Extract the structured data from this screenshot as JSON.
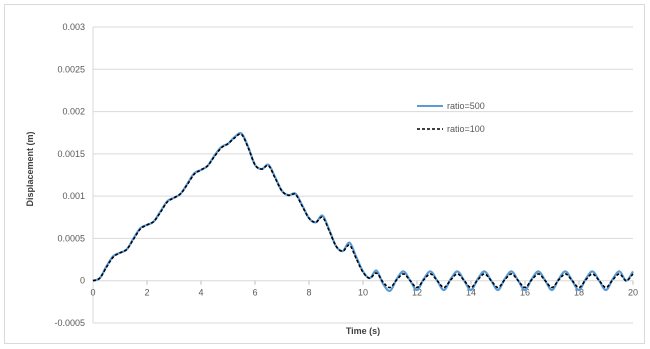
{
  "chart_data": {
    "type": "line",
    "title": "",
    "xlabel": "Time (s)",
    "ylabel": "Displacement (m)",
    "xlim": [
      0,
      20
    ],
    "ylim": [
      -0.0005,
      0.003
    ],
    "x_ticks": [
      "0",
      "2",
      "4",
      "6",
      "8",
      "10",
      "12",
      "14",
      "16",
      "18",
      "20"
    ],
    "y_ticks": [
      "0.003",
      "0.0025",
      "0.002",
      "0.0015",
      "0.001",
      "0.0005",
      "0",
      "-0.0005"
    ],
    "grid": true,
    "legend_position": "right",
    "series": [
      {
        "name": "ratio=500",
        "color": "#5b9bd5",
        "style": "solid",
        "x": [
          0,
          0.25,
          0.5,
          0.75,
          1,
          1.25,
          1.5,
          1.75,
          2,
          2.25,
          2.5,
          2.75,
          3,
          3.25,
          3.5,
          3.75,
          4,
          4.25,
          4.5,
          4.75,
          5,
          5.25,
          5.5,
          5.75,
          6,
          6.25,
          6.5,
          6.75,
          7,
          7.25,
          7.5,
          7.75,
          8,
          8.25,
          8.5,
          8.75,
          9,
          9.25,
          9.5,
          9.75,
          10,
          10.25,
          10.5,
          10.75,
          11,
          11.25,
          11.5,
          11.75,
          12,
          12.25,
          12.5,
          12.75,
          13,
          13.25,
          13.5,
          13.75,
          14,
          14.25,
          14.5,
          14.75,
          15,
          15.25,
          15.5,
          15.75,
          16,
          16.25,
          16.5,
          16.75,
          17,
          17.25,
          17.5,
          17.75,
          18,
          18.25,
          18.5,
          18.75,
          19,
          19.25,
          19.5,
          19.75,
          20
        ],
        "y": [
          0,
          3e-05,
          0.00017,
          0.00029,
          0.00033,
          0.00037,
          0.0005,
          0.00062,
          0.00066,
          0.0007,
          0.00082,
          0.00094,
          0.00098,
          0.00103,
          0.00115,
          0.00127,
          0.00131,
          0.00136,
          0.00148,
          0.00158,
          0.00162,
          0.0017,
          0.00174,
          0.00158,
          0.00137,
          0.00132,
          0.00137,
          0.00122,
          0.00106,
          0.00101,
          0.00103,
          0.00089,
          0.00074,
          0.00069,
          0.00077,
          0.0006,
          0.00041,
          0.00035,
          0.00045,
          0.00028,
          0.00011,
          3e-05,
          0.00012,
          -4e-05,
          -0.00012,
          2e-05,
          0.00011,
          0.0,
          -0.00011,
          2e-05,
          0.00011,
          0.0,
          -0.00011,
          2e-05,
          0.00011,
          0.0,
          -0.00011,
          2e-05,
          0.00011,
          0.0,
          -0.00011,
          2e-05,
          0.00011,
          0.0,
          -0.00011,
          2e-05,
          0.00011,
          0.0,
          -0.00011,
          2e-05,
          0.00011,
          0.0,
          -0.00011,
          2e-05,
          0.00011,
          0.0,
          -0.00011,
          2e-05,
          0.00011,
          0.0,
          0.00011
        ]
      },
      {
        "name": "ratio=100",
        "color": "#000000",
        "style": "dashed",
        "x": [
          0,
          0.25,
          0.5,
          0.75,
          1,
          1.25,
          1.5,
          1.75,
          2,
          2.25,
          2.5,
          2.75,
          3,
          3.25,
          3.5,
          3.75,
          4,
          4.25,
          4.5,
          4.75,
          5,
          5.25,
          5.5,
          5.75,
          6,
          6.25,
          6.5,
          6.75,
          7,
          7.25,
          7.5,
          7.75,
          8,
          8.25,
          8.5,
          8.75,
          9,
          9.25,
          9.5,
          9.75,
          10,
          10.25,
          10.5,
          10.75,
          11,
          11.25,
          11.5,
          11.75,
          12,
          12.25,
          12.5,
          12.75,
          13,
          13.25,
          13.5,
          13.75,
          14,
          14.25,
          14.5,
          14.75,
          15,
          15.25,
          15.5,
          15.75,
          16,
          16.25,
          16.5,
          16.75,
          17,
          17.25,
          17.5,
          17.75,
          18,
          18.25,
          18.5,
          18.75,
          19,
          19.25,
          19.5,
          19.75,
          20
        ],
        "y": [
          0,
          3e-05,
          0.00016,
          0.00028,
          0.00033,
          0.00037,
          0.00049,
          0.00061,
          0.00066,
          0.0007,
          0.00081,
          0.00093,
          0.00098,
          0.00103,
          0.00114,
          0.00126,
          0.00131,
          0.00136,
          0.00147,
          0.00157,
          0.00162,
          0.00169,
          0.00173,
          0.00157,
          0.00137,
          0.00132,
          0.00136,
          0.00121,
          0.00106,
          0.00101,
          0.00102,
          0.00088,
          0.00074,
          0.00069,
          0.00075,
          0.00059,
          0.00041,
          0.00035,
          0.00042,
          0.00026,
          0.0001,
          3e-05,
          9e-05,
          -2e-05,
          -8e-05,
          1e-05,
          8e-05,
          0.0,
          -8e-05,
          1e-05,
          8e-05,
          0.0,
          -8e-05,
          1e-05,
          8e-05,
          0.0,
          -8e-05,
          1e-05,
          8e-05,
          0.0,
          -8e-05,
          1e-05,
          8e-05,
          0.0,
          -8e-05,
          1e-05,
          8e-05,
          0.0,
          -8e-05,
          1e-05,
          8e-05,
          0.0,
          -8e-05,
          1e-05,
          8e-05,
          0.0,
          -8e-05,
          1e-05,
          8e-05,
          0.0,
          8e-05
        ]
      }
    ]
  }
}
